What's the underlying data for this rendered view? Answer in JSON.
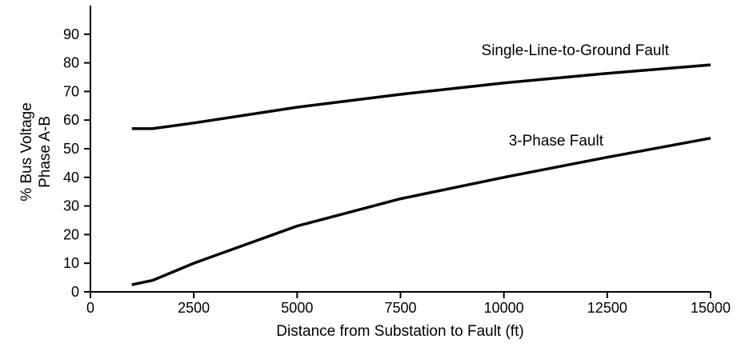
{
  "chart_data": {
    "type": "line",
    "xlabel": "Distance from Substation to Fault (ft)",
    "ylabel_lines": [
      "% Bus Voltage",
      "Phase A-B"
    ],
    "xlim": [
      0,
      15000
    ],
    "ylim": [
      0,
      100
    ],
    "x_ticks": [
      0,
      2500,
      5000,
      7500,
      10000,
      12500,
      15000
    ],
    "y_ticks": [
      0,
      10,
      20,
      30,
      40,
      50,
      60,
      70,
      80,
      90
    ],
    "grid": false,
    "legend": "none",
    "series": [
      {
        "name": "Single-Line-to-Ground Fault",
        "color": "#000000",
        "x": [
          1000,
          1500,
          2500,
          5000,
          7500,
          10000,
          12500,
          15000
        ],
        "y": [
          57,
          57,
          59,
          64.5,
          69,
          73,
          76.3,
          79.3
        ]
      },
      {
        "name": "3-Phase Fault",
        "color": "#000000",
        "x": [
          1000,
          1500,
          2500,
          5000,
          7500,
          10000,
          12500,
          15000
        ],
        "y": [
          2.5,
          4,
          10,
          23,
          32.5,
          40,
          47,
          53.7
        ]
      }
    ]
  }
}
